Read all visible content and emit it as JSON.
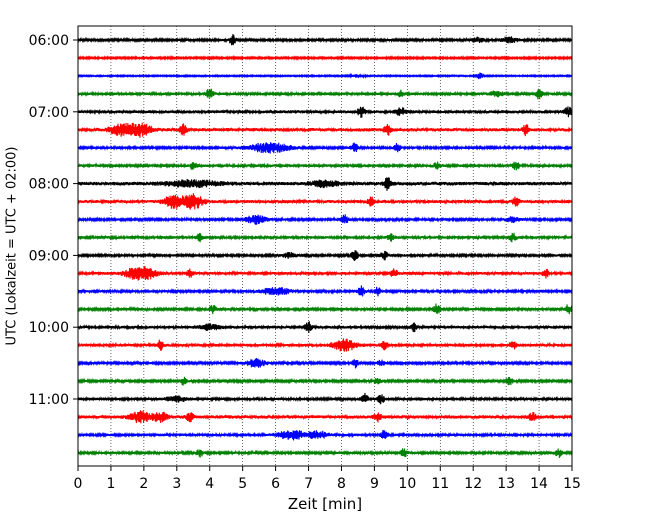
{
  "chart_data": {
    "type": "line",
    "subtype": "seismogram-helicorder",
    "xlabel": "Zeit  [min]",
    "ylabel": "UTC (Lokalzeit = UTC + 02:00)",
    "xlim": [
      0,
      15
    ],
    "xticks": [
      0,
      1,
      2,
      3,
      4,
      5,
      6,
      7,
      8,
      9,
      10,
      11,
      12,
      13,
      14,
      15
    ],
    "ytick_labels": [
      "06:00",
      "07:00",
      "08:00",
      "09:00",
      "10:00",
      "11:00"
    ],
    "ytick_rows": [
      0,
      4,
      8,
      12,
      16,
      20
    ],
    "grid": "vertical dotted at each minute",
    "trace_colors": [
      "#000000",
      "#ff0000",
      "#0000ff",
      "#008000"
    ],
    "row_count": 24,
    "row_interval_minutes": 15,
    "traces": [
      {
        "start": "06:00",
        "base_amp": 2.0,
        "events": [
          [
            4.7,
            5,
            0.1
          ],
          [
            12.1,
            2.5,
            0.2
          ],
          [
            13.1,
            3,
            0.25
          ]
        ]
      },
      {
        "start": "06:15",
        "base_amp": 1.6,
        "events": []
      },
      {
        "start": "06:30",
        "base_amp": 1.2,
        "events": [
          [
            12.2,
            3,
            0.1
          ],
          [
            8.5,
            1.5,
            0.2
          ]
        ]
      },
      {
        "start": "06:45",
        "base_amp": 2.4,
        "events": [
          [
            4.0,
            5,
            0.1
          ],
          [
            9.8,
            3,
            0.1
          ],
          [
            12.7,
            2.5,
            0.2
          ],
          [
            14.0,
            5,
            0.1
          ]
        ]
      },
      {
        "start": "07:00",
        "base_amp": 2.8,
        "events": [
          [
            8.6,
            5,
            0.1
          ],
          [
            9.8,
            3.5,
            0.15
          ],
          [
            14.9,
            4,
            0.15
          ]
        ]
      },
      {
        "start": "07:15",
        "base_amp": 3.0,
        "events": [
          [
            1.3,
            5,
            0.35
          ],
          [
            1.9,
            6,
            0.35
          ],
          [
            3.2,
            5,
            0.1
          ],
          [
            9.4,
            5,
            0.1
          ],
          [
            13.6,
            5,
            0.1
          ]
        ]
      },
      {
        "start": "07:30",
        "base_amp": 2.2,
        "events": [
          [
            5.8,
            5,
            0.6
          ],
          [
            8.4,
            4.5,
            0.1
          ],
          [
            9.7,
            4,
            0.1
          ]
        ]
      },
      {
        "start": "07:45",
        "base_amp": 2.4,
        "events": [
          [
            3.5,
            4,
            0.1
          ],
          [
            10.9,
            3.5,
            0.1
          ],
          [
            13.3,
            4,
            0.1
          ]
        ]
      },
      {
        "start": "08:00",
        "base_amp": 3.2,
        "events": [
          [
            3.5,
            3,
            0.8
          ],
          [
            7.5,
            3,
            0.4
          ],
          [
            9.4,
            6,
            0.1
          ]
        ]
      },
      {
        "start": "08:15",
        "base_amp": 2.8,
        "events": [
          [
            2.9,
            6,
            0.3
          ],
          [
            3.5,
            7,
            0.3
          ],
          [
            8.9,
            4,
            0.1
          ],
          [
            13.3,
            4,
            0.1
          ]
        ]
      },
      {
        "start": "08:30",
        "base_amp": 2.2,
        "events": [
          [
            5.4,
            4.5,
            0.3
          ],
          [
            8.1,
            4.5,
            0.1
          ],
          [
            13.2,
            2.5,
            0.2
          ]
        ]
      },
      {
        "start": "08:45",
        "base_amp": 2.4,
        "events": [
          [
            3.7,
            4,
            0.1
          ],
          [
            9.5,
            3.5,
            0.1
          ],
          [
            13.2,
            4,
            0.1
          ]
        ]
      },
      {
        "start": "09:00",
        "base_amp": 2.2,
        "events": [
          [
            8.4,
            5,
            0.1
          ],
          [
            9.3,
            4.5,
            0.1
          ],
          [
            6.4,
            2.5,
            0.2
          ]
        ]
      },
      {
        "start": "09:15",
        "base_amp": 2.6,
        "events": [
          [
            1.7,
            5,
            0.3
          ],
          [
            2.1,
            5,
            0.3
          ],
          [
            3.4,
            4,
            0.1
          ],
          [
            9.6,
            4,
            0.1
          ],
          [
            14.2,
            4,
            0.1
          ]
        ]
      },
      {
        "start": "09:30",
        "base_amp": 2.2,
        "events": [
          [
            6.0,
            4,
            0.4
          ],
          [
            8.6,
            5,
            0.1
          ],
          [
            9.1,
            4,
            0.1
          ]
        ]
      },
      {
        "start": "09:45",
        "base_amp": 2.2,
        "events": [
          [
            4.1,
            4,
            0.1
          ],
          [
            10.9,
            5,
            0.1
          ],
          [
            14.9,
            5,
            0.1
          ]
        ]
      },
      {
        "start": "10:00",
        "base_amp": 2.6,
        "events": [
          [
            7.0,
            5,
            0.1
          ],
          [
            10.2,
            3.5,
            0.1
          ],
          [
            4.0,
            2.5,
            0.3
          ]
        ]
      },
      {
        "start": "10:15",
        "base_amp": 2.6,
        "events": [
          [
            2.5,
            4.5,
            0.1
          ],
          [
            8.1,
            5.5,
            0.35
          ],
          [
            9.3,
            4,
            0.1
          ],
          [
            13.2,
            4,
            0.1
          ]
        ]
      },
      {
        "start": "10:30",
        "base_amp": 2.0,
        "events": [
          [
            5.4,
            4,
            0.3
          ],
          [
            8.4,
            4.5,
            0.1
          ],
          [
            9.2,
            3.5,
            0.1
          ]
        ]
      },
      {
        "start": "10:45",
        "base_amp": 2.0,
        "events": [
          [
            3.2,
            4,
            0.1
          ],
          [
            9.1,
            4,
            0.1
          ],
          [
            13.1,
            4,
            0.1
          ]
        ]
      },
      {
        "start": "11:00",
        "base_amp": 2.4,
        "events": [
          [
            8.7,
            5,
            0.1
          ],
          [
            9.2,
            4,
            0.1
          ],
          [
            3.0,
            2.5,
            0.3
          ]
        ]
      },
      {
        "start": "11:15",
        "base_amp": 3.0,
        "events": [
          [
            1.9,
            5.5,
            0.3
          ],
          [
            2.5,
            5,
            0.2
          ],
          [
            3.4,
            4.5,
            0.1
          ],
          [
            9.1,
            4,
            0.1
          ],
          [
            13.8,
            5,
            0.1
          ]
        ]
      },
      {
        "start": "11:30",
        "base_amp": 2.4,
        "events": [
          [
            6.5,
            4.5,
            0.4
          ],
          [
            7.3,
            3.5,
            0.3
          ],
          [
            9.3,
            4.5,
            0.1
          ]
        ]
      },
      {
        "start": "11:45",
        "base_amp": 2.2,
        "events": [
          [
            3.7,
            4,
            0.1
          ],
          [
            9.9,
            4,
            0.1
          ],
          [
            14.6,
            4,
            0.1
          ]
        ]
      }
    ]
  }
}
